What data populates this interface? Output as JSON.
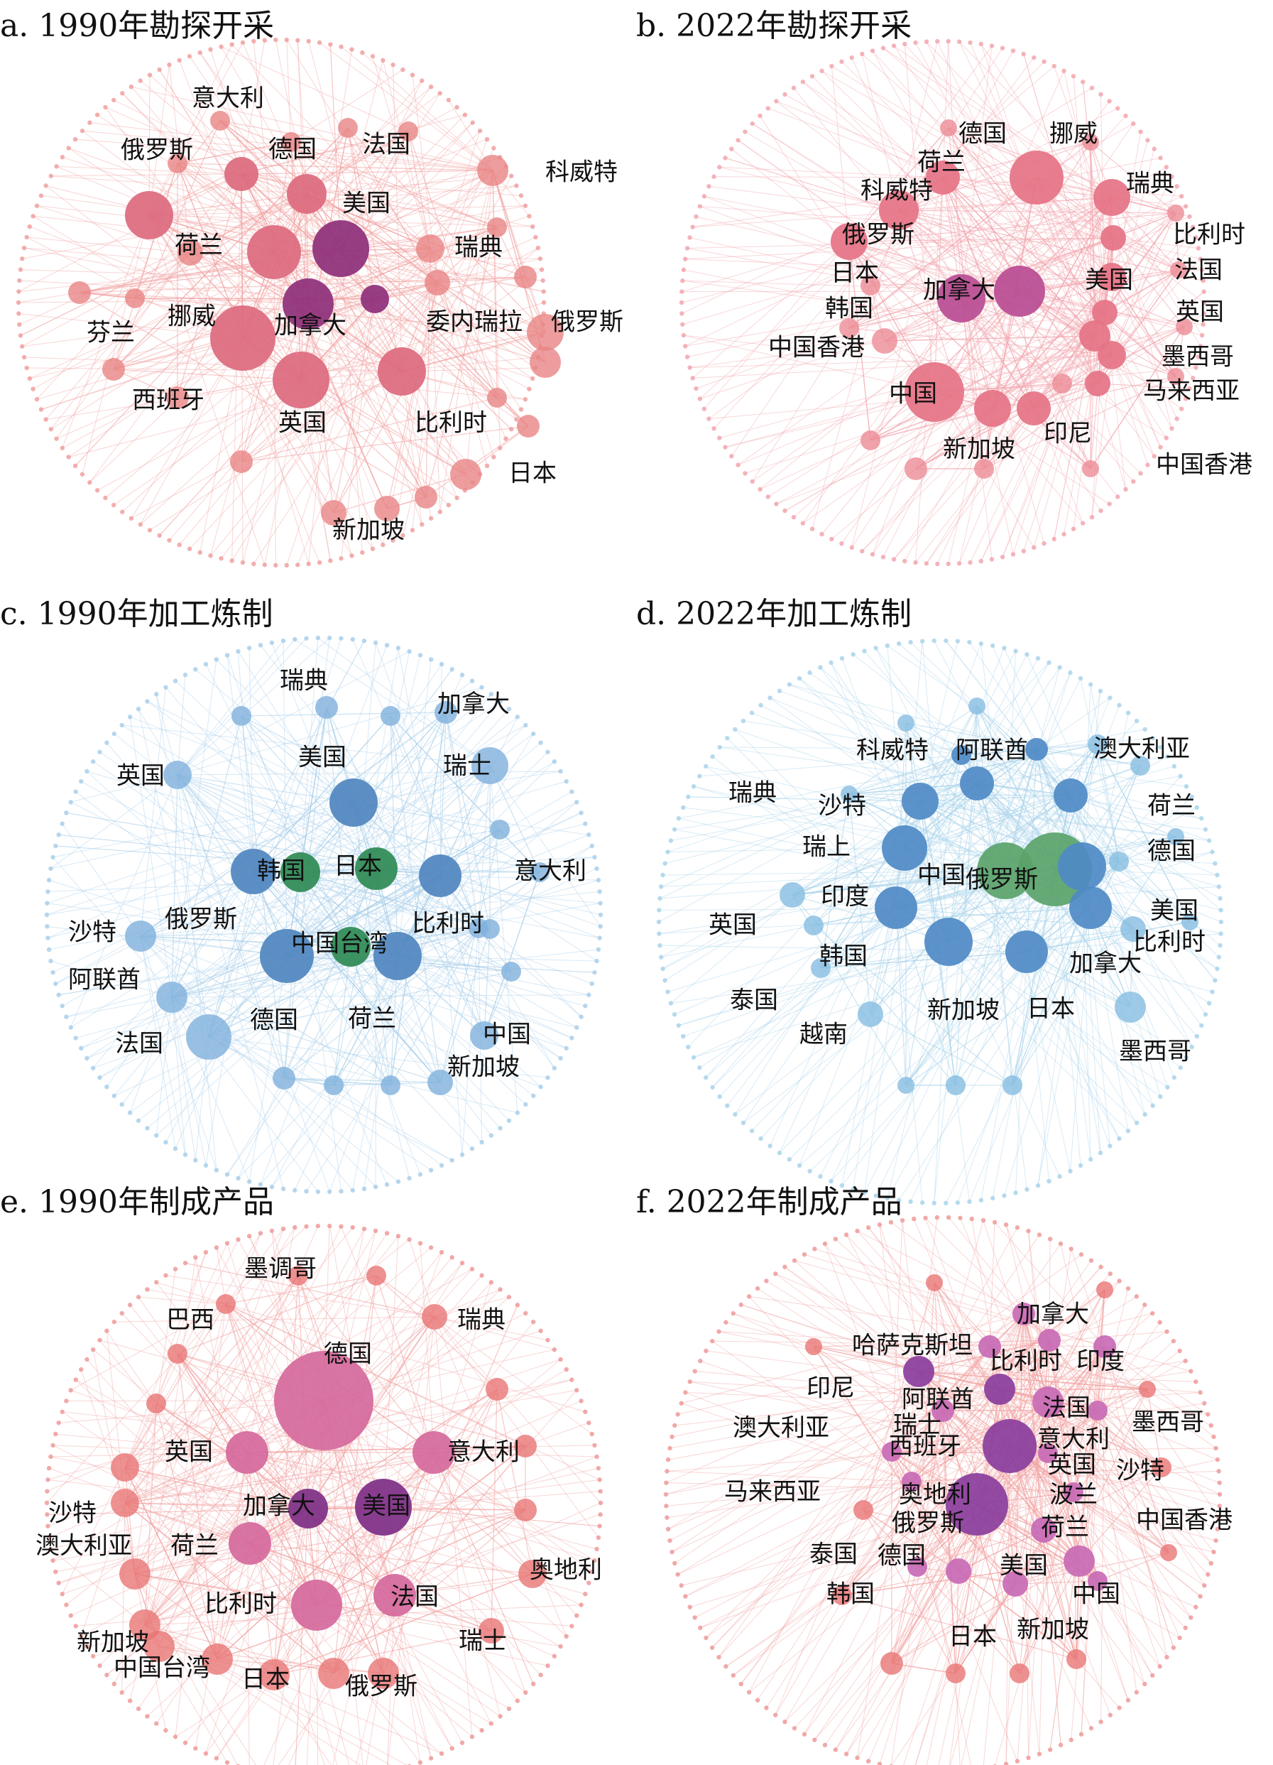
{
  "panels": [
    {
      "id": "a",
      "title": "a. 1990年勘探开采",
      "palette": {
        "edge": "#f2a2a2",
        "ring": "#f0a0a0",
        "node": "#e98585",
        "hub": "#dc6a7e",
        "core": "#8e2f7a"
      },
      "labels": [
        "意大利",
        "俄罗斯",
        "德国",
        "法国",
        "科威特",
        "美国",
        "瑞典",
        "荷兰",
        "挪威",
        "加拿大",
        "委内瑞拉",
        "俄罗斯",
        "芬兰",
        "西班牙",
        "英国",
        "比利时",
        "日本",
        "新加坡"
      ]
    },
    {
      "id": "b",
      "title": "b. 2022年勘探开采",
      "palette": {
        "edge": "#f2a6ae",
        "ring": "#f2a6ae",
        "node": "#ec8c96",
        "hub": "#e57386",
        "core": "#b84c93"
      },
      "labels": [
        "德国",
        "挪威",
        "瑞典",
        "荷兰",
        "科威特",
        "比利时",
        "俄罗斯",
        "日本",
        "法国",
        "美国",
        "加拿大",
        "韩国",
        "英国",
        "中国香港",
        "墨西哥",
        "中国",
        "马来西亚",
        "印尼",
        "新加坡",
        "中国香港"
      ]
    },
    {
      "id": "c",
      "title": "c. 1990年加工炼制",
      "palette": {
        "edge": "#a9cfea",
        "ring": "#a9cfea",
        "node": "#7fb0dc",
        "hub": "#4f85bf",
        "core": "#2e8a54"
      },
      "labels": [
        "瑞典",
        "加拿大",
        "美国",
        "瑞士",
        "英国",
        "韩国",
        "日本",
        "意大利",
        "比利时",
        "俄罗斯",
        "沙特",
        "中国台湾",
        "阿联酋",
        "德国",
        "荷兰",
        "中国",
        "法国",
        "新加坡"
      ]
    },
    {
      "id": "d",
      "title": "d. 2022年加工炼制",
      "palette": {
        "edge": "#a9d3ea",
        "ring": "#a9d3ea",
        "node": "#86bde1",
        "hub": "#4f8ac5",
        "core": "#5aa36a"
      },
      "labels": [
        "科威特",
        "阿联酋",
        "澳大利亚",
        "瑞典",
        "沙特",
        "荷兰",
        "瑞上",
        "德国",
        "中国",
        "俄罗斯",
        "印度",
        "美国",
        "英国",
        "比利时",
        "韩国",
        "加拿大",
        "泰国",
        "越南",
        "新加坡",
        "日本",
        "墨西哥"
      ]
    },
    {
      "id": "e",
      "title": "e. 1990年制成产品",
      "palette": {
        "edge": "#f2a3a3",
        "ring": "#ef9a9a",
        "node": "#e97676",
        "hub": "#d5699c",
        "core": "#7e2e86"
      },
      "labels": [
        "墨调哥",
        "巴西",
        "瑞典",
        "德国",
        "英国",
        "意大利",
        "沙特",
        "加拿大",
        "美国",
        "澳大利亚",
        "荷兰",
        "奥地利",
        "比利时",
        "法国",
        "新加坡",
        "瑞士",
        "中国台湾",
        "日本",
        "俄罗斯"
      ]
    },
    {
      "id": "f",
      "title": "f. 2022年制成产品",
      "palette": {
        "edge": "#f2a3a3",
        "ring": "#ef9a9a",
        "node": "#e97676",
        "hub": "#c86ab5",
        "core": "#8a3d9c"
      },
      "labels": [
        "加拿大",
        "哈萨克斯坦",
        "比利时",
        "印度",
        "印尼",
        "阿联酋",
        "法国",
        "墨西哥",
        "澳大利亚",
        "瑞士",
        "意大利",
        "西班牙",
        "英国",
        "沙特",
        "马来西亚",
        "奥地利",
        "波兰",
        "俄罗斯",
        "荷兰",
        "中国香港",
        "泰国",
        "德国",
        "美国",
        "中国",
        "韩国",
        "日本",
        "新加坡"
      ]
    }
  ]
}
